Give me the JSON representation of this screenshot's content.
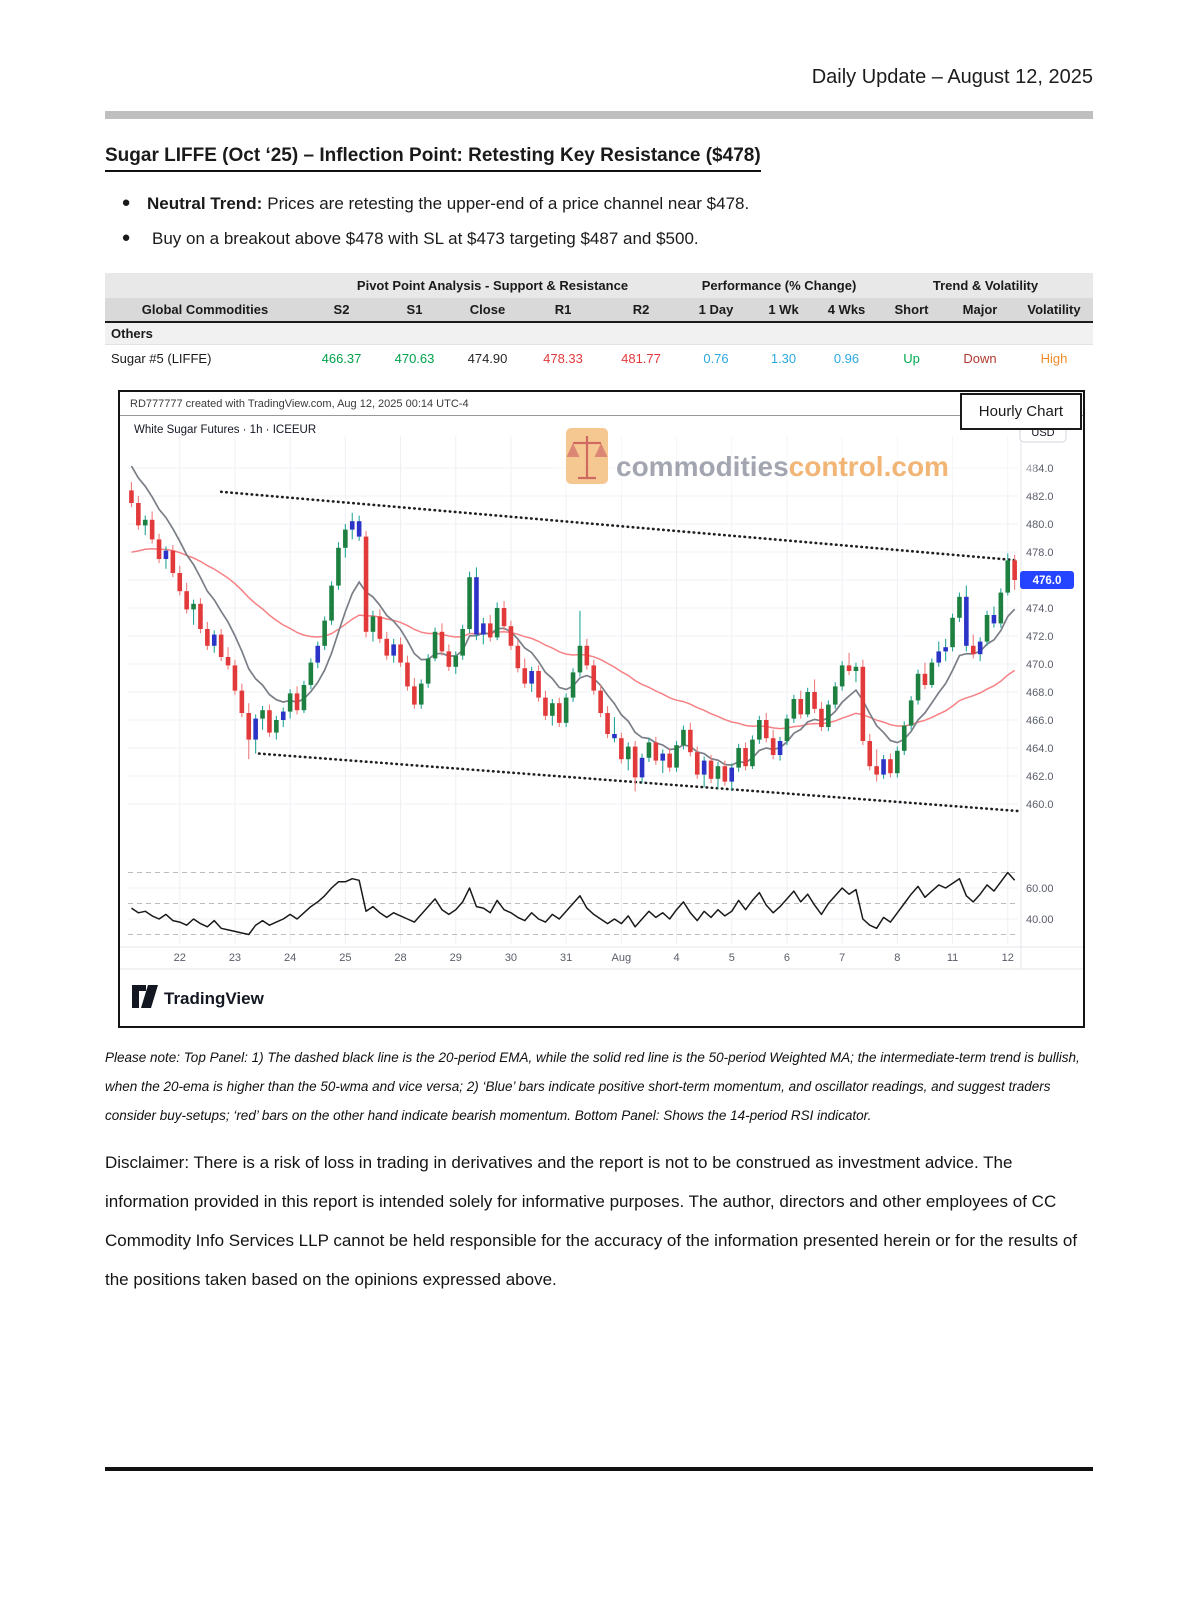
{
  "page": {
    "header_right": "Daily Update – August 12, 2025"
  },
  "section": {
    "title": "Sugar LIFFE (Oct ‘25) – Inflection Point: Retesting Key Resistance ($478)",
    "bullets": [
      {
        "bold": "Neutral Trend:",
        "rest": "Prices are retesting the upper-end of a price channel near $478."
      },
      {
        "bold": "",
        "rest": "Buy on a breakout above $478 with SL at $473 targeting $487 and $500."
      }
    ]
  },
  "table": {
    "group_headers": [
      "Pivot Point Analysis - Support & Resistance",
      "Performance (% Change)",
      "Trend & Volatility"
    ],
    "columns": [
      "Global Commodities",
      "S2",
      "S1",
      "Close",
      "R1",
      "R2",
      "1 Day",
      "1 Wk",
      "4 Wks",
      "Short",
      "Major",
      "Volatility"
    ],
    "section_row": "Others",
    "row": {
      "name": "Sugar #5 (LIFFE)",
      "s2": "466.37",
      "s1": "470.63",
      "close": "474.90",
      "r1": "478.33",
      "r2": "481.77",
      "d1": "0.76",
      "w1": "1.30",
      "w4": "0.96",
      "short": "Up",
      "major": "Down",
      "volatility": "High"
    },
    "colors": {
      "support": "#00a14b",
      "resistance": "#e23a3c",
      "perf": "#2da9e1",
      "up": "#00a94f",
      "down": "#b03a30",
      "high": "#f08c28",
      "close": "#262626"
    }
  },
  "chart": {
    "credit": "RD777777 created with TradingView.com, Aug 12, 2025 00:14 UTC-4",
    "badge": "Hourly Chart",
    "symbol": "White Sugar Futures · 1h · ICEEUR",
    "currency": "USD",
    "watermark_gray": "commodities",
    "watermark_orange": "control.com",
    "price_label": "476.0",
    "logo_text": "TradingView"
  },
  "chart_data": {
    "type": "candlestick",
    "title": "White Sugar Futures 1h with 20-EMA, 50-WMA, price channel and 14-period RSI",
    "price_ticks": [
      484,
      482,
      480,
      478,
      476,
      474,
      472,
      470,
      468,
      466,
      464,
      462,
      460
    ],
    "price_range": [
      457.6,
      486.6
    ],
    "last_price": 476.0,
    "day_labels": [
      {
        "label": "22",
        "bar": 7
      },
      {
        "label": "23",
        "bar": 15
      },
      {
        "label": "24",
        "bar": 23
      },
      {
        "label": "25",
        "bar": 31
      },
      {
        "label": "28",
        "bar": 39
      },
      {
        "label": "29",
        "bar": 47
      },
      {
        "label": "30",
        "bar": 55
      },
      {
        "label": "31",
        "bar": 63
      },
      {
        "label": "Aug",
        "bar": 71
      },
      {
        "label": "4",
        "bar": 79
      },
      {
        "label": "5",
        "bar": 87
      },
      {
        "label": "6",
        "bar": 95
      },
      {
        "label": "7",
        "bar": 103
      },
      {
        "label": "8",
        "bar": 111
      },
      {
        "label": "11",
        "bar": 119
      },
      {
        "label": "12",
        "bar": 127
      }
    ],
    "channel": {
      "upper": {
        "bar1": 13,
        "p1": 482.3,
        "p2": 477.4
      },
      "lower": {
        "bar1": 18.5,
        "p1": 463.6,
        "p2": 459.5
      }
    },
    "ma": {
      "fast": {
        "seed": 484.8,
        "alpha": 0.2,
        "color": "#7a7e87"
      },
      "slow": {
        "seed": 477.8,
        "alpha": 0.05,
        "color": "#f78084"
      }
    },
    "rsi_range": [
      24,
      79
    ],
    "rsi_gridlines_dashed": [
      70,
      50,
      30
    ],
    "rsi_axis": [
      {
        "v": 60,
        "label": "60.00"
      },
      {
        "v": 40,
        "label": "40.00"
      }
    ],
    "colors": {
      "up": "#1d8040",
      "down": "#e23a3a",
      "neutral": "#2c34c8",
      "wick_up": "#26a69a",
      "wick_down": "#ef7d7d",
      "rsi": "#1a1a1a",
      "grid": "#eef0f4",
      "axis_text": "#585d68",
      "tag": "#2544ff",
      "channel": "#1f1f1f",
      "watermark_gray": "#8d919e",
      "watermark_orange": "#f0a353"
    },
    "bars": [
      [
        482.4,
        483.0,
        481.2,
        481.5,
        "r"
      ],
      [
        481.5,
        482.0,
        479.6,
        479.9,
        "r"
      ],
      [
        479.9,
        480.6,
        479.2,
        480.3,
        "g"
      ],
      [
        480.3,
        480.9,
        478.6,
        478.9,
        "r"
      ],
      [
        478.9,
        479.3,
        477.2,
        477.5,
        "r"
      ],
      [
        477.5,
        478.4,
        476.8,
        478.1,
        "b"
      ],
      [
        478.1,
        478.5,
        476.2,
        476.5,
        "r"
      ],
      [
        476.5,
        477.0,
        474.9,
        475.2,
        "r"
      ],
      [
        475.2,
        475.8,
        473.6,
        473.9,
        "r"
      ],
      [
        473.9,
        474.6,
        472.8,
        474.3,
        "g"
      ],
      [
        474.3,
        474.7,
        472.2,
        472.5,
        "r"
      ],
      [
        472.5,
        473.0,
        471.0,
        471.3,
        "r"
      ],
      [
        471.3,
        472.4,
        470.8,
        472.1,
        "b"
      ],
      [
        472.1,
        472.5,
        470.2,
        470.5,
        "r"
      ],
      [
        470.5,
        471.2,
        469.6,
        469.9,
        "r"
      ],
      [
        469.9,
        470.3,
        467.8,
        468.1,
        "r"
      ],
      [
        468.1,
        468.6,
        466.2,
        466.5,
        "r"
      ],
      [
        466.5,
        467.2,
        463.2,
        464.6,
        "r"
      ],
      [
        464.6,
        466.4,
        463.6,
        466.1,
        "b"
      ],
      [
        466.1,
        467.0,
        465.3,
        466.7,
        "g"
      ],
      [
        466.7,
        467.1,
        464.8,
        465.1,
        "r"
      ],
      [
        465.1,
        466.3,
        464.6,
        466.0,
        "g"
      ],
      [
        466.0,
        466.9,
        465.5,
        466.6,
        "b"
      ],
      [
        466.6,
        468.2,
        466.1,
        467.9,
        "g"
      ],
      [
        467.9,
        468.4,
        466.4,
        466.7,
        "r"
      ],
      [
        466.7,
        468.8,
        466.5,
        468.5,
        "g"
      ],
      [
        468.5,
        470.4,
        468.2,
        470.1,
        "g"
      ],
      [
        470.1,
        471.6,
        469.7,
        471.3,
        "b"
      ],
      [
        471.3,
        473.4,
        471.0,
        473.1,
        "g"
      ],
      [
        473.1,
        475.9,
        472.8,
        475.6,
        "g"
      ],
      [
        475.6,
        478.7,
        475.3,
        478.3,
        "g"
      ],
      [
        478.3,
        480.0,
        477.6,
        479.6,
        "g"
      ],
      [
        479.6,
        480.8,
        478.9,
        480.2,
        "b"
      ],
      [
        480.2,
        480.6,
        478.8,
        479.1,
        "b"
      ],
      [
        479.1,
        479.5,
        471.9,
        472.3,
        "r"
      ],
      [
        472.3,
        473.8,
        471.6,
        473.4,
        "g"
      ],
      [
        473.4,
        473.9,
        471.5,
        471.8,
        "r"
      ],
      [
        471.8,
        472.3,
        470.3,
        470.6,
        "r"
      ],
      [
        470.6,
        471.8,
        470.1,
        471.4,
        "b"
      ],
      [
        471.4,
        471.9,
        469.8,
        470.1,
        "r"
      ],
      [
        470.1,
        470.6,
        468.1,
        468.4,
        "r"
      ],
      [
        468.4,
        469.0,
        466.8,
        467.1,
        "r"
      ],
      [
        467.1,
        468.9,
        466.8,
        468.6,
        "g"
      ],
      [
        468.6,
        470.7,
        468.3,
        470.4,
        "g"
      ],
      [
        470.4,
        472.6,
        470.2,
        472.3,
        "g"
      ],
      [
        472.3,
        472.9,
        470.6,
        470.9,
        "r"
      ],
      [
        470.9,
        471.4,
        469.5,
        469.8,
        "r"
      ],
      [
        469.8,
        470.9,
        469.3,
        470.6,
        "g"
      ],
      [
        470.6,
        472.8,
        470.3,
        472.5,
        "g"
      ],
      [
        472.5,
        476.6,
        472.2,
        476.2,
        "g"
      ],
      [
        476.2,
        476.9,
        471.7,
        472.1,
        "b"
      ],
      [
        472.1,
        473.3,
        471.4,
        472.9,
        "b"
      ],
      [
        472.9,
        473.5,
        471.6,
        471.9,
        "r"
      ],
      [
        471.9,
        474.4,
        471.7,
        474.0,
        "g"
      ],
      [
        474.0,
        474.5,
        472.4,
        472.7,
        "r"
      ],
      [
        472.7,
        473.1,
        471.0,
        471.3,
        "r"
      ],
      [
        471.3,
        471.7,
        469.4,
        469.7,
        "r"
      ],
      [
        469.7,
        470.4,
        468.3,
        468.6,
        "r"
      ],
      [
        468.6,
        469.8,
        468.0,
        469.5,
        "b"
      ],
      [
        469.5,
        469.9,
        467.3,
        467.6,
        "r"
      ],
      [
        467.6,
        468.1,
        466.0,
        466.3,
        "r"
      ],
      [
        466.3,
        467.5,
        465.6,
        467.2,
        "g"
      ],
      [
        467.2,
        467.6,
        465.5,
        465.8,
        "r"
      ],
      [
        465.8,
        467.9,
        465.5,
        467.6,
        "g"
      ],
      [
        467.6,
        469.7,
        467.3,
        469.4,
        "g"
      ],
      [
        469.4,
        473.8,
        469.1,
        471.3,
        "g"
      ],
      [
        471.3,
        471.8,
        469.6,
        469.9,
        "r"
      ],
      [
        469.9,
        470.3,
        467.8,
        468.1,
        "r"
      ],
      [
        468.1,
        468.5,
        466.2,
        466.5,
        "r"
      ],
      [
        466.5,
        467.0,
        464.7,
        465.0,
        "r"
      ],
      [
        465.0,
        466.2,
        464.4,
        464.7,
        "b"
      ],
      [
        464.7,
        465.1,
        462.9,
        463.2,
        "r"
      ],
      [
        463.2,
        464.4,
        462.4,
        464.1,
        "g"
      ],
      [
        464.1,
        464.5,
        460.9,
        461.9,
        "r"
      ],
      [
        461.9,
        463.6,
        461.5,
        463.3,
        "b"
      ],
      [
        463.3,
        464.7,
        463.0,
        464.4,
        "g"
      ],
      [
        464.4,
        464.8,
        462.8,
        463.1,
        "r"
      ],
      [
        463.1,
        463.9,
        462.2,
        463.6,
        "b"
      ],
      [
        463.6,
        464.0,
        462.3,
        462.6,
        "r"
      ],
      [
        462.6,
        464.5,
        462.3,
        464.2,
        "g"
      ],
      [
        464.2,
        465.6,
        463.9,
        465.3,
        "g"
      ],
      [
        465.3,
        465.8,
        463.4,
        463.7,
        "r"
      ],
      [
        463.7,
        464.1,
        461.8,
        462.1,
        "r"
      ],
      [
        462.1,
        463.4,
        461.2,
        463.1,
        "b"
      ],
      [
        463.1,
        463.5,
        461.5,
        461.8,
        "r"
      ],
      [
        461.8,
        463.0,
        461.1,
        462.7,
        "g"
      ],
      [
        462.7,
        463.1,
        461.3,
        461.6,
        "r"
      ],
      [
        461.6,
        462.9,
        461.0,
        462.6,
        "b"
      ],
      [
        462.6,
        464.3,
        462.3,
        464.0,
        "g"
      ],
      [
        464.0,
        464.4,
        462.4,
        462.7,
        "r"
      ],
      [
        462.7,
        464.9,
        462.5,
        464.6,
        "g"
      ],
      [
        464.6,
        466.3,
        464.3,
        466.0,
        "g"
      ],
      [
        466.0,
        466.5,
        464.4,
        464.7,
        "r"
      ],
      [
        464.7,
        465.3,
        463.2,
        463.5,
        "r"
      ],
      [
        463.5,
        464.8,
        463.1,
        464.5,
        "b"
      ],
      [
        464.5,
        466.4,
        464.2,
        466.1,
        "g"
      ],
      [
        466.1,
        467.8,
        465.8,
        467.5,
        "g"
      ],
      [
        467.5,
        468.1,
        466.1,
        466.4,
        "r"
      ],
      [
        466.4,
        468.3,
        466.2,
        468.0,
        "g"
      ],
      [
        468.0,
        468.9,
        466.5,
        466.8,
        "r"
      ],
      [
        466.8,
        467.3,
        465.2,
        465.5,
        "r"
      ],
      [
        465.5,
        467.4,
        465.2,
        467.1,
        "g"
      ],
      [
        467.1,
        468.7,
        466.8,
        468.4,
        "g"
      ],
      [
        468.4,
        470.2,
        468.1,
        469.9,
        "g"
      ],
      [
        469.9,
        470.8,
        469.2,
        469.5,
        "r"
      ],
      [
        469.5,
        470.1,
        468.7,
        469.8,
        "g"
      ],
      [
        469.8,
        470.3,
        464.2,
        464.5,
        "r"
      ],
      [
        464.5,
        465.0,
        462.4,
        462.7,
        "r"
      ],
      [
        462.7,
        463.9,
        461.6,
        462.1,
        "r"
      ],
      [
        462.1,
        463.5,
        461.8,
        463.2,
        "b"
      ],
      [
        463.2,
        463.6,
        461.9,
        462.2,
        "r"
      ],
      [
        462.2,
        464.1,
        461.9,
        463.8,
        "g"
      ],
      [
        463.8,
        465.9,
        463.5,
        465.6,
        "g"
      ],
      [
        465.6,
        467.7,
        465.3,
        467.4,
        "g"
      ],
      [
        467.4,
        469.6,
        467.1,
        469.3,
        "g"
      ],
      [
        469.3,
        470.1,
        468.2,
        468.5,
        "r"
      ],
      [
        468.5,
        470.4,
        468.3,
        470.1,
        "g"
      ],
      [
        470.1,
        471.6,
        469.8,
        470.9,
        "b"
      ],
      [
        470.9,
        471.8,
        470.2,
        471.2,
        "b"
      ],
      [
        471.2,
        473.6,
        470.9,
        473.3,
        "g"
      ],
      [
        473.3,
        475.1,
        473.0,
        474.8,
        "g"
      ],
      [
        474.8,
        475.6,
        470.9,
        471.3,
        "b"
      ],
      [
        471.3,
        472.1,
        470.4,
        470.7,
        "r"
      ],
      [
        470.7,
        471.9,
        470.2,
        471.6,
        "b"
      ],
      [
        471.6,
        473.8,
        471.3,
        473.5,
        "g"
      ],
      [
        473.5,
        474.1,
        472.6,
        472.9,
        "b"
      ],
      [
        472.9,
        475.4,
        472.6,
        475.1,
        "g"
      ],
      [
        475.1,
        477.9,
        474.9,
        477.4,
        "g"
      ],
      [
        477.4,
        477.8,
        475.3,
        476.0,
        "r"
      ]
    ],
    "rsi": [
      47,
      44,
      45,
      42,
      40,
      43,
      39,
      38,
      36,
      40,
      37,
      35,
      39,
      34,
      33,
      32,
      31,
      30,
      36,
      39,
      36,
      38,
      40,
      43,
      40,
      44,
      48,
      51,
      55,
      60,
      64,
      64,
      66,
      65,
      45,
      48,
      44,
      41,
      44,
      42,
      40,
      38,
      43,
      48,
      53,
      46,
      43,
      46,
      51,
      60,
      48,
      47,
      44,
      52,
      46,
      44,
      41,
      39,
      44,
      40,
      38,
      43,
      40,
      45,
      50,
      55,
      47,
      43,
      40,
      37,
      40,
      37,
      42,
      35,
      40,
      45,
      41,
      44,
      40,
      46,
      51,
      44,
      39,
      45,
      41,
      46,
      42,
      45,
      52,
      46,
      52,
      57,
      49,
      44,
      48,
      53,
      58,
      51,
      56,
      49,
      43,
      50,
      55,
      60,
      56,
      59,
      40,
      36,
      34,
      41,
      38,
      44,
      50,
      56,
      61,
      54,
      58,
      62,
      60,
      63,
      66,
      55,
      51,
      56,
      62,
      58,
      64,
      70,
      65
    ]
  },
  "note": "Please note: Top Panel: 1) The dashed black line is the 20-period EMA, while the solid red line is the 50-period Weighted MA; the intermediate-term trend is bullish, when the 20-ema is higher than the 50-wma and vice versa; 2) ‘Blue’ bars indicate positive short-term momentum, and oscillator readings, and suggest traders consider buy-setups; ‘red’ bars on the other hand indicate bearish momentum. Bottom Panel: Shows the 14-period RSI indicator.",
  "disclaimer": "Disclaimer: There is a risk of loss in trading in derivatives and the report is not to be construed as investment advice. The information provided in this report is intended solely for informative purposes. The author, directors and other employees of CC Commodity Info Services LLP cannot be held responsible for the accuracy of the information presented herein or for the results of the positions taken based on the opinions expressed above."
}
